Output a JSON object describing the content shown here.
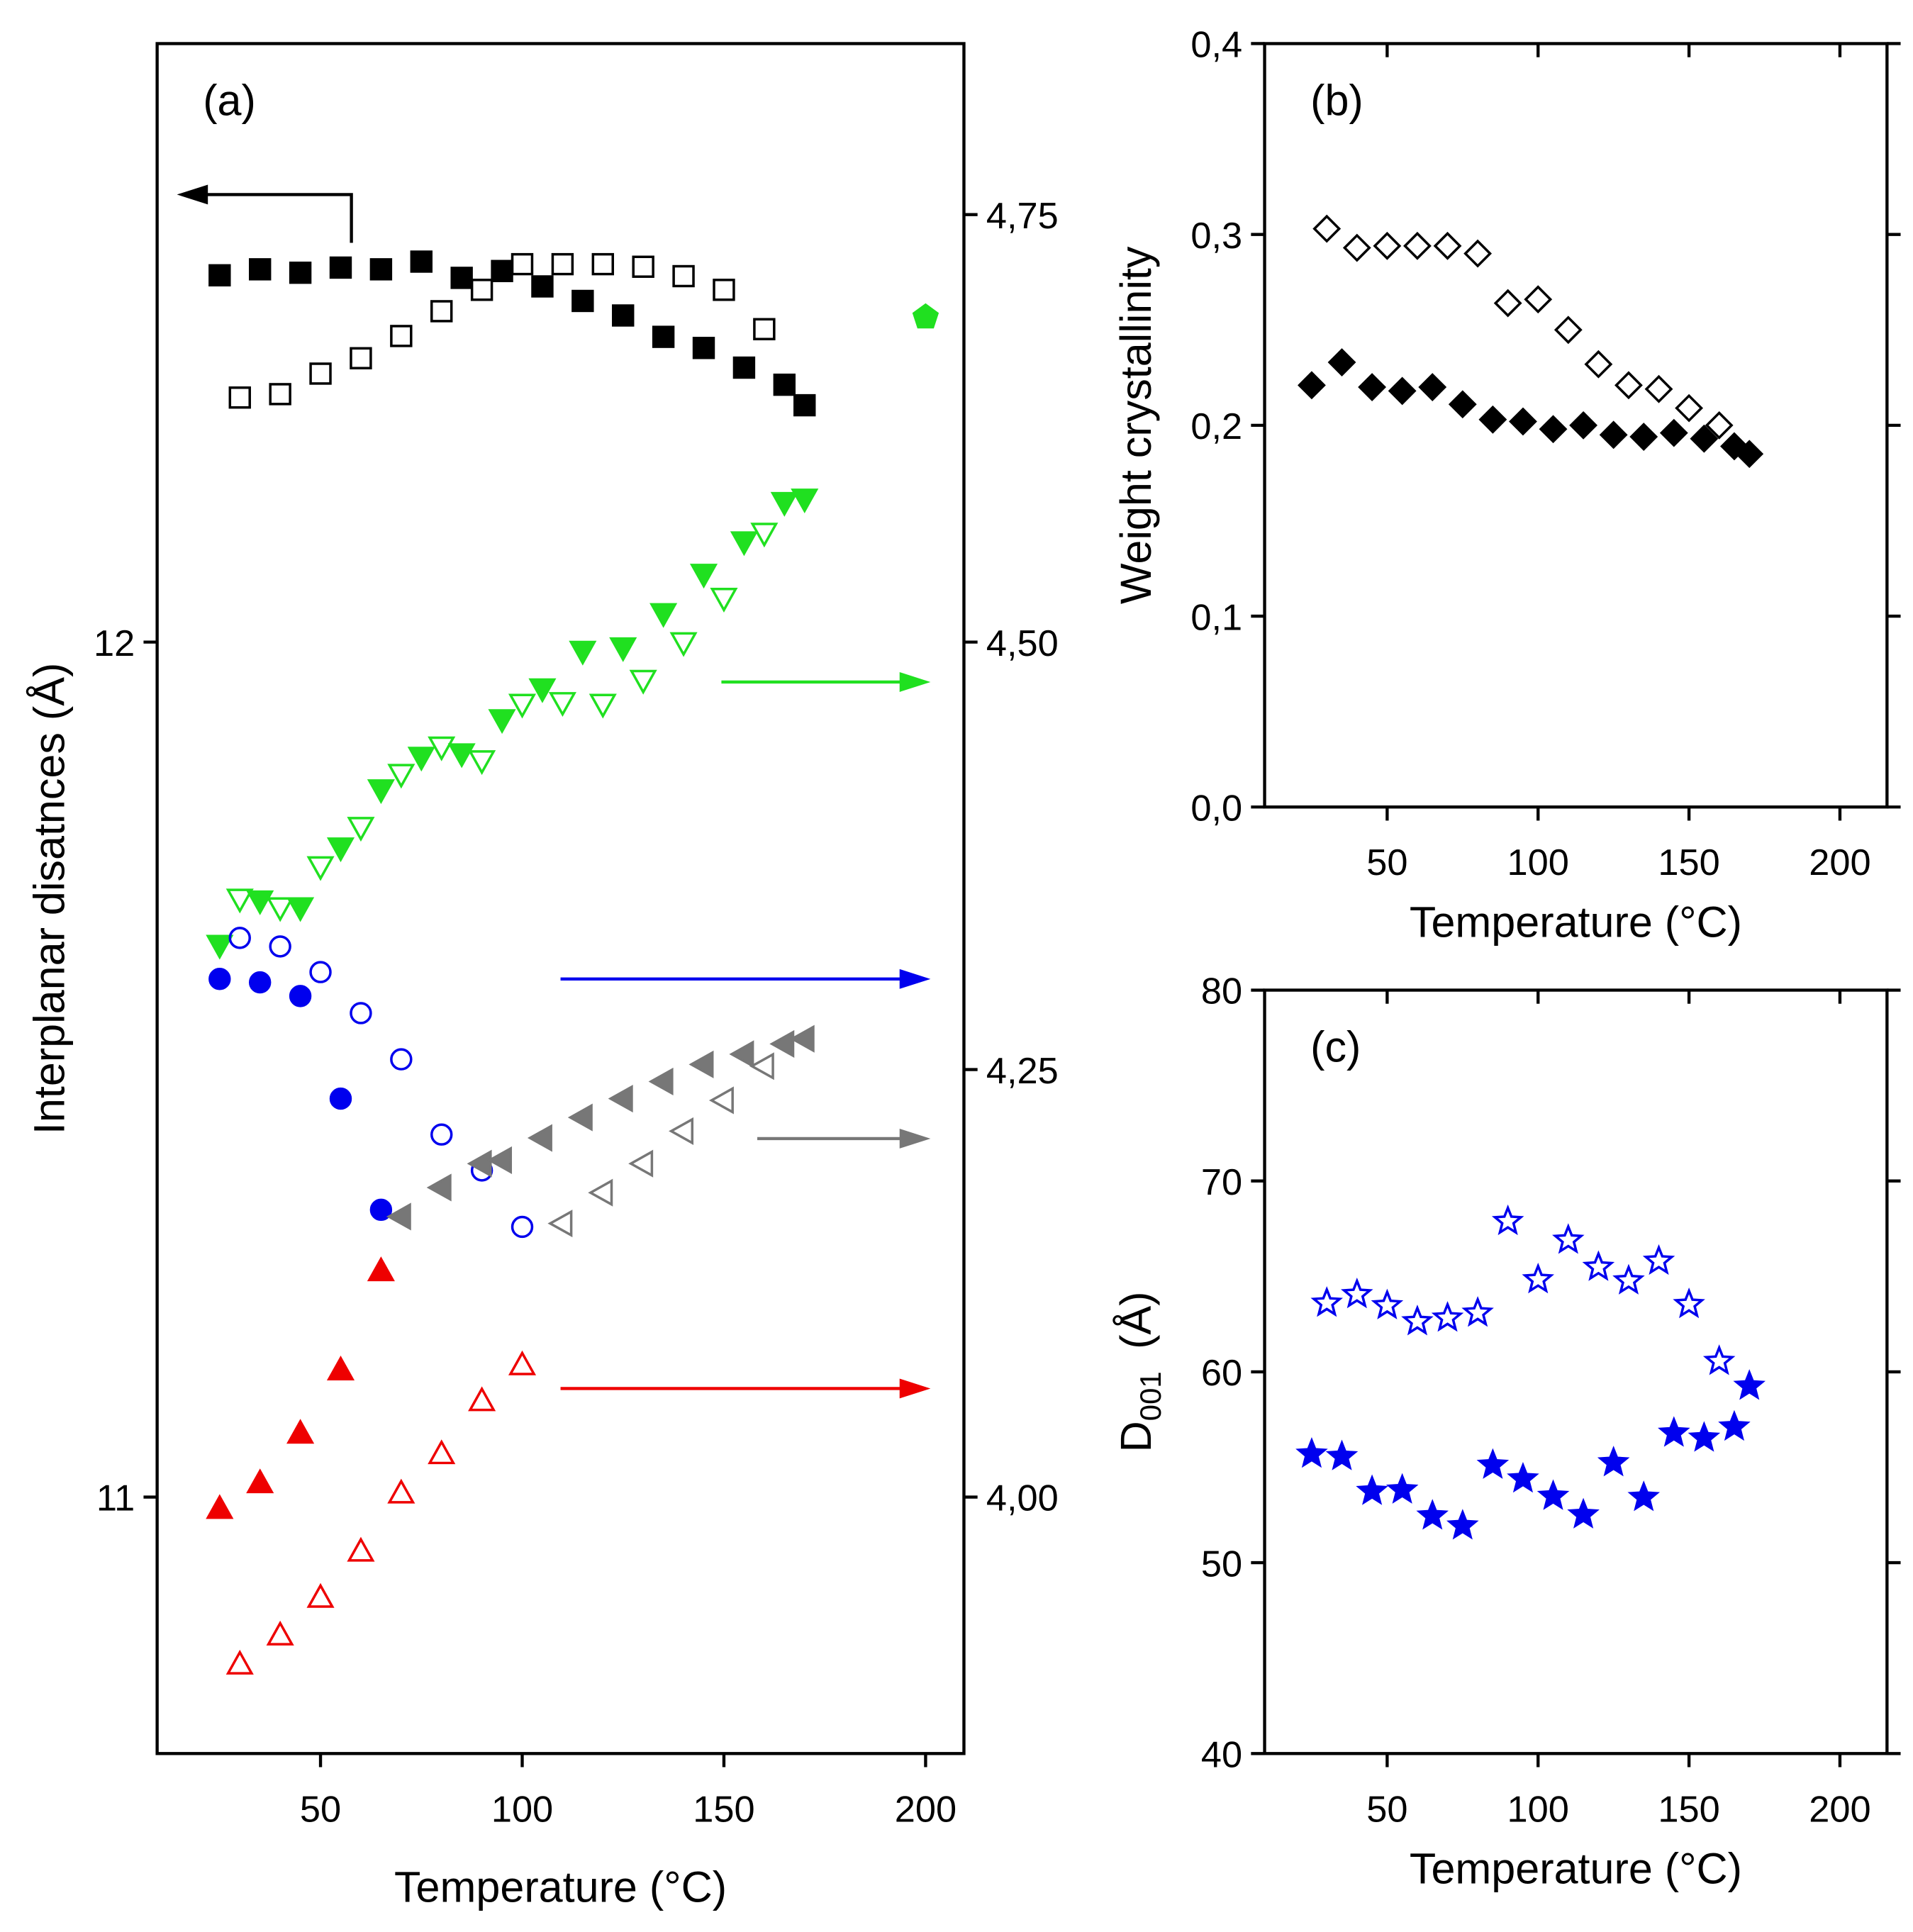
{
  "chart_data": [
    {
      "type": "scatter",
      "annotation": "(a)",
      "xlabel": "Temperature (°C)",
      "ylabel": "Interplanar disatnces (Å)",
      "xlim": [
        9.5,
        209.5
      ],
      "xticks": [
        50,
        100,
        150,
        200
      ],
      "ylim": [
        10.7,
        12.7
      ],
      "yticks": [
        11,
        12
      ],
      "y2lim": [
        3.85,
        4.85
      ],
      "y2ticks": [
        {
          "value": 4,
          "label": "4,00"
        },
        {
          "value": 4.25,
          "label": "4,25"
        },
        {
          "value": 4.5,
          "label": "4,50"
        },
        {
          "value": 4.75,
          "label": "4,75"
        }
      ],
      "series": [
        {
          "color": "#000000",
          "marker": "square",
          "filled": true,
          "axis": "y",
          "x": [
            25,
            35,
            45,
            55,
            65,
            75,
            85,
            95,
            105,
            115,
            125,
            135,
            145,
            155,
            165,
            170
          ],
          "values": [
            12.429,
            12.436,
            12.432,
            12.438,
            12.436,
            12.445,
            12.426,
            12.434,
            12.416,
            12.399,
            12.382,
            12.357,
            12.344,
            12.321,
            12.301,
            12.277
          ]
        },
        {
          "color": "#000000",
          "marker": "square",
          "filled": false,
          "axis": "y",
          "x": [
            30,
            40,
            50,
            60,
            70,
            80,
            90,
            100,
            110,
            120,
            130,
            140,
            150,
            160
          ],
          "values": [
            12.286,
            12.29,
            12.314,
            12.332,
            12.358,
            12.387,
            12.412,
            12.442,
            12.442,
            12.442,
            12.439,
            12.428,
            12.412,
            12.366
          ]
        },
        {
          "color": "#20e020",
          "marker": "triangle-down",
          "filled": true,
          "axis": "y2",
          "x": [
            25,
            35,
            45,
            55,
            65,
            75,
            85,
            95,
            105,
            115,
            125,
            135,
            145,
            155,
            165,
            170
          ],
          "values": [
            4.323,
            4.349,
            4.345,
            4.38,
            4.414,
            4.433,
            4.435,
            4.455,
            4.473,
            4.495,
            4.497,
            4.517,
            4.54,
            4.559,
            4.582,
            4.584
          ]
        },
        {
          "color": "#20e020",
          "marker": "triangle-down",
          "filled": false,
          "axis": "y2",
          "x": [
            30,
            40,
            50,
            60,
            70,
            80,
            90,
            100,
            110,
            120,
            130,
            140,
            150,
            160
          ],
          "values": [
            4.35,
            4.345,
            4.369,
            4.392,
            4.423,
            4.439,
            4.431,
            4.464,
            4.465,
            4.464,
            4.478,
            4.5,
            4.526,
            4.564
          ]
        },
        {
          "color": "#0000ee",
          "marker": "circle",
          "filled": true,
          "axis": "y2",
          "x": [
            25,
            35,
            45,
            55,
            65
          ],
          "values": [
            4.303,
            4.301,
            4.293,
            4.233,
            4.168
          ]
        },
        {
          "color": "#0000ee",
          "marker": "circle",
          "filled": false,
          "axis": "y2",
          "x": [
            30,
            40,
            50,
            60,
            70,
            80,
            90,
            100
          ],
          "values": [
            4.327,
            4.322,
            4.307,
            4.283,
            4.256,
            4.212,
            4.191,
            4.158
          ]
        },
        {
          "color": "#777777",
          "marker": "triangle-left",
          "filled": true,
          "axis": "y2",
          "x": [
            70,
            80,
            90,
            95,
            105,
            115,
            125,
            135,
            145,
            155,
            165,
            170
          ],
          "values": [
            4.164,
            4.181,
            4.195,
            4.197,
            4.21,
            4.222,
            4.233,
            4.243,
            4.253,
            4.259,
            4.265,
            4.268
          ]
        },
        {
          "color": "#777777",
          "marker": "triangle-left",
          "filled": false,
          "axis": "y2",
          "x": [
            110,
            120,
            130,
            140,
            150,
            160
          ],
          "values": [
            4.16,
            4.178,
            4.195,
            4.214,
            4.232,
            4.252
          ]
        },
        {
          "color": "#ee0000",
          "marker": "triangle-up",
          "filled": true,
          "axis": "y2",
          "x": [
            25,
            35,
            45,
            55,
            65
          ],
          "values": [
            3.993,
            4.008,
            4.037,
            4.074,
            4.132
          ]
        },
        {
          "color": "#ee0000",
          "marker": "triangle-up",
          "filled": false,
          "axis": "y2",
          "x": [
            30,
            40,
            50,
            60,
            70,
            80,
            90,
            100
          ],
          "values": [
            3.902,
            3.919,
            3.941,
            3.968,
            4.002,
            4.025,
            4.056,
            4.077
          ]
        },
        {
          "color": "#20e020",
          "marker": "pentagon",
          "filled": true,
          "axis": "y2",
          "x": [
            200
          ],
          "values": [
            4.69
          ]
        }
      ]
    },
    {
      "type": "scatter",
      "annotation": "(b)",
      "xlabel": "Temperature (°C)",
      "ylabel": "Weight crystallinity",
      "xlim": [
        9.4,
        215.6
      ],
      "xticks": [
        50,
        100,
        150,
        200
      ],
      "ylim": [
        0,
        0.4
      ],
      "yticks": [
        {
          "value": 0,
          "label": "0,0"
        },
        {
          "value": 0.1,
          "label": "0,1"
        },
        {
          "value": 0.2,
          "label": "0,2"
        },
        {
          "value": 0.3,
          "label": "0,3"
        },
        {
          "value": 0.4,
          "label": "0,4"
        }
      ],
      "series": [
        {
          "color": "#000000",
          "marker": "diamond",
          "filled": true,
          "x": [
            25,
            35,
            45,
            55,
            65,
            75,
            85,
            95,
            105,
            115,
            125,
            135,
            145,
            155,
            165,
            170
          ],
          "values": [
            0.221,
            0.233,
            0.22,
            0.218,
            0.22,
            0.211,
            0.203,
            0.202,
            0.198,
            0.2,
            0.195,
            0.194,
            0.196,
            0.193,
            0.189,
            0.185
          ]
        },
        {
          "color": "#000000",
          "marker": "diamond",
          "filled": false,
          "x": [
            30,
            40,
            50,
            60,
            70,
            80,
            90,
            100,
            110,
            120,
            130,
            140,
            150,
            160
          ],
          "values": [
            0.303,
            0.293,
            0.294,
            0.294,
            0.294,
            0.29,
            0.264,
            0.266,
            0.25,
            0.232,
            0.221,
            0.219,
            0.209,
            0.2
          ]
        }
      ]
    },
    {
      "type": "scatter",
      "annotation": "(c)",
      "xlabel": "Temperature (°C)",
      "ylabel": "D",
      "ylabel_subscript": "001",
      "ylabel_unit": "(Å)",
      "xlim": [
        9.4,
        215.6
      ],
      "xticks": [
        50,
        100,
        150,
        200
      ],
      "ylim": [
        40,
        80
      ],
      "yticks": [
        40,
        50,
        60,
        70,
        80
      ],
      "series": [
        {
          "color": "#0000ee",
          "marker": "star",
          "filled": true,
          "x": [
            25,
            35,
            45,
            55,
            65,
            75,
            85,
            95,
            105,
            115,
            125,
            135,
            145,
            155,
            165,
            170
          ],
          "values": [
            55.69,
            55.56,
            53.74,
            53.81,
            52.45,
            51.93,
            55.11,
            54.39,
            53.48,
            52.51,
            55.24,
            53.42,
            56.79,
            56.53,
            57.11,
            59.25
          ]
        },
        {
          "color": "#0000ee",
          "marker": "star",
          "filled": false,
          "x": [
            30,
            40,
            50,
            60,
            70,
            80,
            90,
            100,
            110,
            120,
            130,
            140,
            150,
            160
          ],
          "values": [
            63.6,
            64.05,
            63.47,
            62.63,
            62.82,
            63.08,
            67.88,
            64.83,
            66.9,
            65.48,
            64.77,
            65.8,
            63.53,
            60.55
          ]
        }
      ]
    }
  ]
}
